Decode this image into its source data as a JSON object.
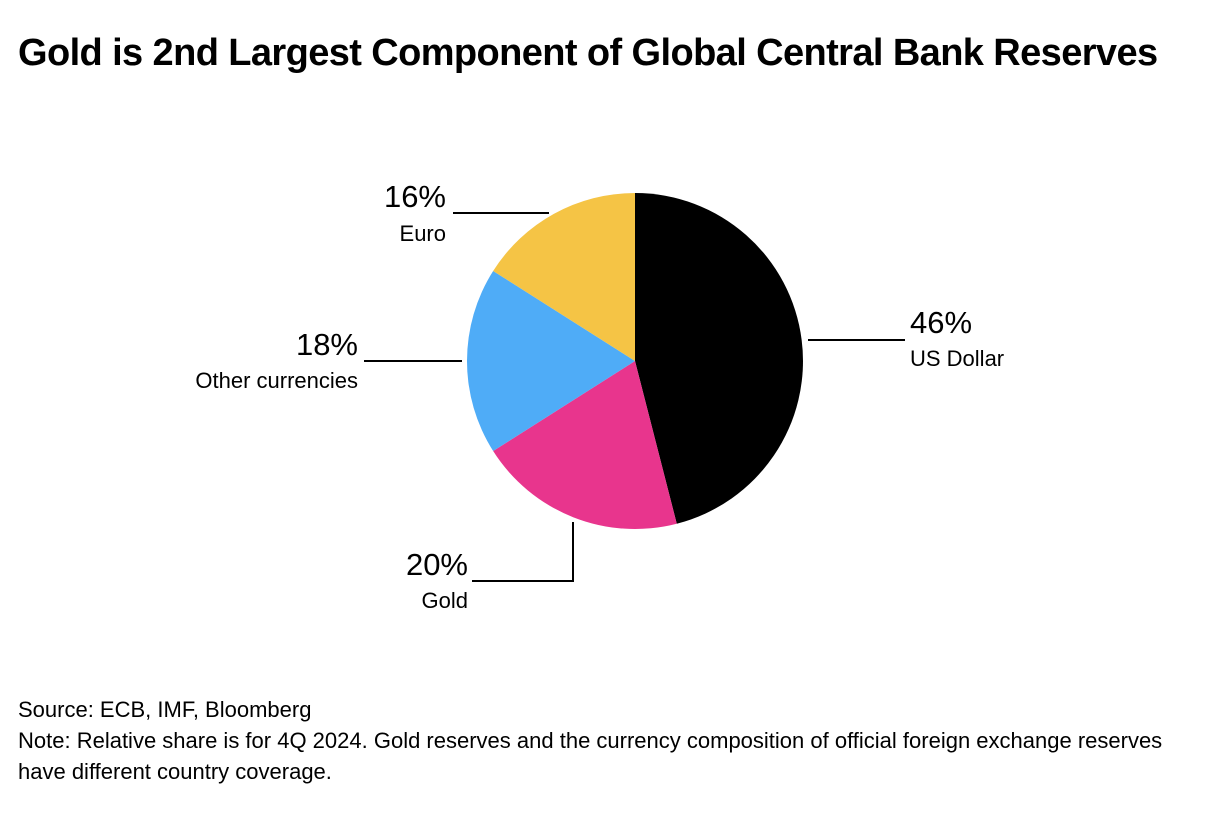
{
  "chart_data": {
    "type": "pie",
    "title": "Gold is 2nd Largest Component of Global Central Bank Reserves",
    "slices": [
      {
        "label": "US Dollar",
        "value": 46,
        "value_label": "46%",
        "color": "#000000"
      },
      {
        "label": "Gold",
        "value": 20,
        "value_label": "20%",
        "color": "#E8358D"
      },
      {
        "label": "Other currencies",
        "value": 18,
        "value_label": "18%",
        "color": "#4FACF7"
      },
      {
        "label": "Euro",
        "value": 16,
        "value_label": "16%",
        "color": "#F5C445"
      }
    ],
    "start": "12 o'clock",
    "direction": "clockwise",
    "label_placement": "outside with leader lines"
  },
  "footer": {
    "source": "Source: ECB, IMF, Bloomberg",
    "note": "Note: Relative share is for 4Q 2024. Gold reserves and the currency composition of official foreign exchange reserves have different country coverage."
  }
}
